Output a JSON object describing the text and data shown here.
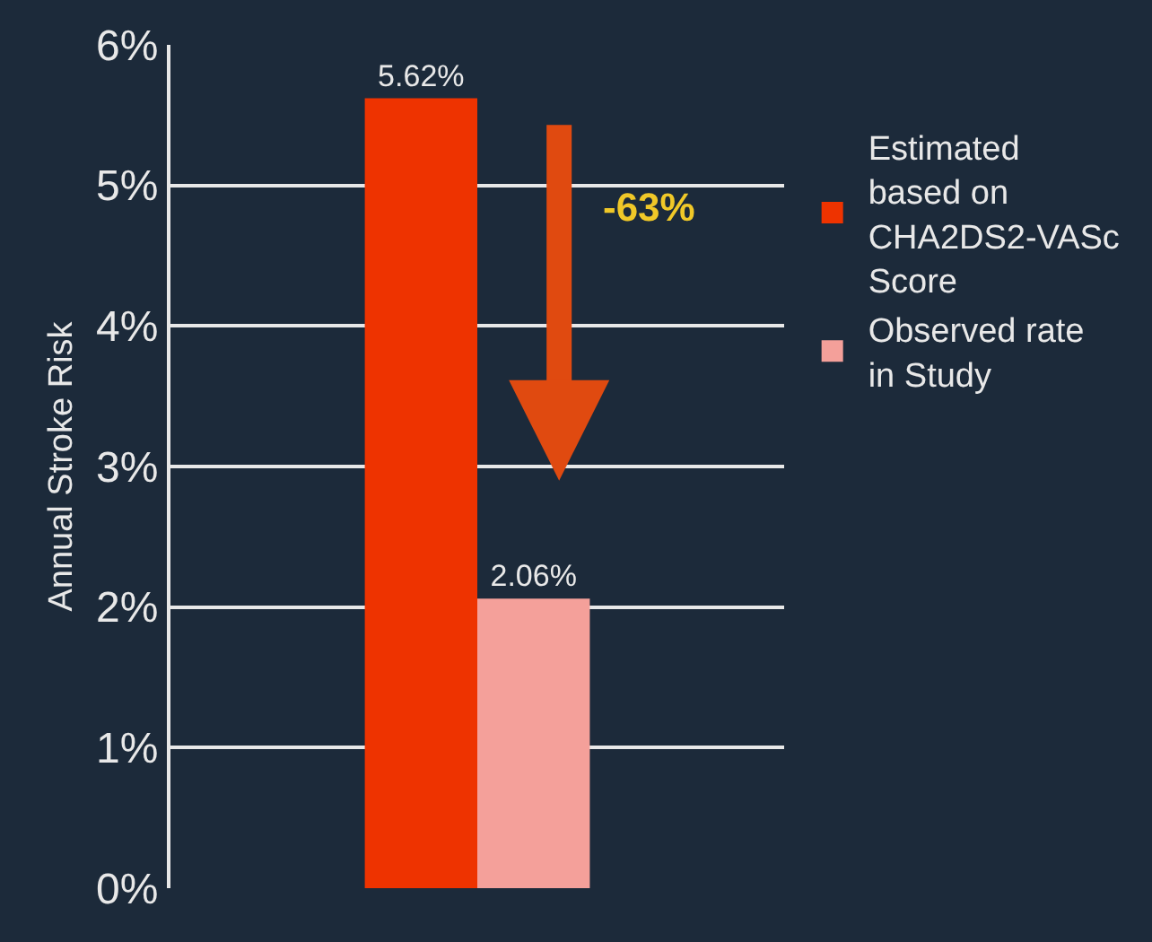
{
  "chart_data": {
    "type": "bar",
    "ylabel": "Annual Stroke Risk",
    "categories": [
      null
    ],
    "series": [
      {
        "name": "Estimated based on CHA2DS2-VASc Score",
        "color": "#ee3300",
        "values": [
          5.62
        ],
        "value_labels": [
          "5.62%"
        ]
      },
      {
        "name": "Observed rate in Study",
        "color": "#f4a09a",
        "values": [
          2.06
        ],
        "value_labels": [
          "2.06%"
        ]
      }
    ],
    "ylim": [
      0,
      6
    ],
    "yticks": [
      {
        "value": 0,
        "label": "0%"
      },
      {
        "value": 1,
        "label": "1%"
      },
      {
        "value": 2,
        "label": "2%"
      },
      {
        "value": 3,
        "label": "3%"
      },
      {
        "value": 4,
        "label": "4%"
      },
      {
        "value": 5,
        "label": "5%"
      },
      {
        "value": 6,
        "label": "6%"
      }
    ],
    "grid": "y",
    "legend": "top right",
    "annotations": [
      "-63%"
    ]
  }
}
